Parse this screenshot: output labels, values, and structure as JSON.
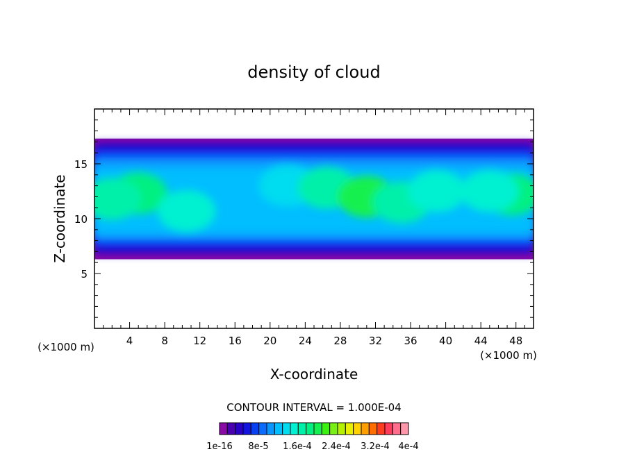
{
  "chart_data": {
    "type": "heatmap",
    "title": "density of cloud",
    "xlabel": "X-coordinate",
    "ylabel": "Z-coordinate",
    "x_unit_left": "(×1000 m)",
    "x_unit_right": "(×1000 m)",
    "xlim": [
      0,
      50
    ],
    "ylim": [
      0,
      20
    ],
    "x_ticks": [
      4,
      8,
      12,
      16,
      20,
      24,
      28,
      32,
      36,
      40,
      44,
      48
    ],
    "y_ticks": [
      5,
      10,
      15
    ],
    "contour_interval_text": "CONTOUR INTERVAL = 1.000E-04",
    "colorbar_labels": [
      "1e-16",
      "8e-5",
      "1.6e-4",
      "2.4e-4",
      "3.2e-4",
      "4e-4"
    ],
    "colorbar_colors": [
      "#8a0aa6",
      "#4b00b0",
      "#2a00c8",
      "#1414e0",
      "#0a40f0",
      "#0a6cff",
      "#0a96ff",
      "#00beff",
      "#00dcf0",
      "#00f0d2",
      "#00f0aa",
      "#00f082",
      "#14f050",
      "#3cf014",
      "#78f014",
      "#b4f000",
      "#e6f000",
      "#ffd200",
      "#ffa000",
      "#ff6e00",
      "#ff3c1e",
      "#ff3c5a",
      "#ff6e8c",
      "#ff96aa"
    ],
    "cloud_layer": {
      "z_bottom": 6.3,
      "z_top": 17.3
    },
    "blobs": [
      {
        "x": 5.0,
        "z": 12.3,
        "level": 11
      },
      {
        "x": 2.0,
        "z": 11.8,
        "level": 10
      },
      {
        "x": 10.5,
        "z": 10.7,
        "level": 9
      },
      {
        "x": 22.0,
        "z": 13.0,
        "level": 8
      },
      {
        "x": 26.5,
        "z": 12.8,
        "level": 10
      },
      {
        "x": 31.0,
        "z": 12.0,
        "level": 12
      },
      {
        "x": 35.0,
        "z": 11.5,
        "level": 10
      },
      {
        "x": 39.0,
        "z": 12.5,
        "level": 9
      },
      {
        "x": 47.5,
        "z": 12.2,
        "level": 11
      },
      {
        "x": 45.0,
        "z": 12.5,
        "level": 9
      }
    ]
  }
}
